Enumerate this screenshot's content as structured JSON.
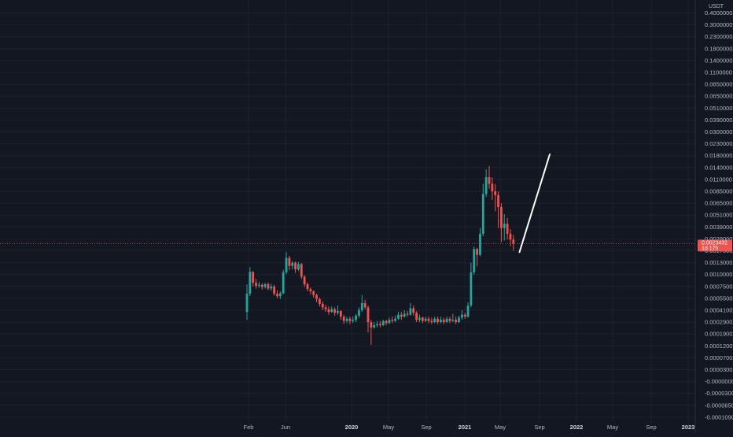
{
  "chart_data": {
    "type": "candlestick",
    "unit_label": "USDT",
    "y_ticks": [
      "0.4000000",
      "0.3000000",
      "0.2300000",
      "0.1800000",
      "0.1400000",
      "0.1100000",
      "0.0850000",
      "0.0650000",
      "0.0510000",
      "0.0390000",
      "0.0300000",
      "0.0230000",
      "0.0180000",
      "0.0140000",
      "0.0110000",
      "0.0085000",
      "0.0065000",
      "0.0051000",
      "0.0039000",
      "0.0029000",
      "0.0017000",
      "0.0013000",
      "0.0010000",
      "0.0007500",
      "0.0005500",
      "0.0004100",
      "0.0002900",
      "0.0001900",
      "0.0001200",
      "0.0000700",
      "0.0000300",
      "-0.0000000",
      "-0.0000300",
      "-0.0000650",
      "-0.0001090"
    ],
    "x_ticks": [
      {
        "label": "Feb",
        "bold": false
      },
      {
        "label": "Jun",
        "bold": false
      },
      {
        "label": "2020",
        "bold": true
      },
      {
        "label": "May",
        "bold": false
      },
      {
        "label": "Sep",
        "bold": false
      },
      {
        "label": "2021",
        "bold": true
      },
      {
        "label": "May",
        "bold": false
      },
      {
        "label": "Sep",
        "bold": false
      },
      {
        "label": "2022",
        "bold": true
      },
      {
        "label": "May",
        "bold": false
      },
      {
        "label": "Sep",
        "bold": false
      },
      {
        "label": "2023",
        "bold": true
      }
    ],
    "current_price": {
      "value": "0.0023432",
      "countdown": "1d 17h"
    },
    "colors": {
      "background": "#131722",
      "up": "#26a69a",
      "down": "#ef5350",
      "grid": "#1e222d",
      "price_line": "#ef5350",
      "drawing": "#ffffff"
    },
    "drawing": {
      "type": "trendline",
      "start": {
        "week": 90,
        "price": 0.00165
      },
      "end": {
        "week": 100,
        "price": 0.0185
      }
    },
    "candles": [
      [
        0.00039,
        0.00062,
        0.00079,
        0.00031
      ],
      [
        0.00062,
        0.00106,
        0.00118,
        0.00058
      ],
      [
        0.00106,
        0.00082,
        0.00108,
        0.00075
      ],
      [
        0.00082,
        0.00076,
        0.0009,
        0.00071
      ],
      [
        0.00076,
        0.00078,
        0.00084,
        0.00072
      ],
      [
        0.00078,
        0.00074,
        0.00081,
        0.00069
      ],
      [
        0.00074,
        0.00079,
        0.00082,
        0.00071
      ],
      [
        0.00079,
        0.00071,
        0.00083,
        0.00068
      ],
      [
        0.00071,
        0.00075,
        0.0008,
        0.00067
      ],
      [
        0.00075,
        0.00062,
        0.00078,
        0.00059
      ],
      [
        0.00062,
        0.00058,
        0.00068,
        0.00055
      ],
      [
        0.00058,
        0.00063,
        0.00066,
        0.00054
      ],
      [
        0.00063,
        0.00105,
        0.00111,
        0.00061
      ],
      [
        0.00105,
        0.00145,
        0.00165,
        0.00101
      ],
      [
        0.00145,
        0.00121,
        0.00152,
        0.0011
      ],
      [
        0.00121,
        0.0013,
        0.00135,
        0.00112
      ],
      [
        0.0013,
        0.00112,
        0.00134,
        0.00104
      ],
      [
        0.00112,
        0.00126,
        0.00132,
        0.00108
      ],
      [
        0.00126,
        0.00095,
        0.00129,
        0.0009
      ],
      [
        0.00095,
        0.00079,
        0.00099,
        0.00074
      ],
      [
        0.00079,
        0.0007,
        0.00083,
        0.00066
      ],
      [
        0.0007,
        0.00066,
        0.00073,
        0.00061
      ],
      [
        0.00066,
        0.0006,
        0.00068,
        0.00056
      ],
      [
        0.0006,
        0.00054,
        0.00062,
        0.0005
      ],
      [
        0.00054,
        0.00048,
        0.00056,
        0.00045
      ],
      [
        0.00048,
        0.00044,
        0.00051,
        0.00041
      ],
      [
        0.00044,
        0.00042,
        0.00047,
        0.00039
      ],
      [
        0.00042,
        0.00039,
        0.00045,
        0.00036
      ],
      [
        0.00039,
        0.00042,
        0.00045,
        0.00038
      ],
      [
        0.00042,
        0.00038,
        0.00044,
        0.00035
      ],
      [
        0.00038,
        0.0004,
        0.00046,
        0.00036
      ],
      [
        0.0004,
        0.00034,
        0.00041,
        0.00031
      ],
      [
        0.00034,
        0.0003,
        0.00036,
        0.00027
      ],
      [
        0.0003,
        0.00032,
        0.00034,
        0.00028
      ],
      [
        0.00032,
        0.0003,
        0.00034,
        0.00027
      ],
      [
        0.0003,
        0.00031,
        0.00034,
        0.00028
      ],
      [
        0.00031,
        0.00035,
        0.00037,
        0.00029
      ],
      [
        0.00035,
        0.00041,
        0.00044,
        0.00033
      ],
      [
        0.00041,
        0.00049,
        0.0006,
        0.00039
      ],
      [
        0.00049,
        0.00044,
        0.00053,
        0.00042
      ],
      [
        0.00044,
        0.00029,
        0.00046,
        0.0002
      ],
      [
        0.00029,
        0.00024,
        0.00031,
        0.000125
      ],
      [
        0.00024,
        0.00026,
        0.00029,
        0.00023
      ],
      [
        0.00026,
        0.00027,
        0.0003,
        0.00024
      ],
      [
        0.00027,
        0.00026,
        0.0003,
        0.00024
      ],
      [
        0.00026,
        0.0003,
        0.00031,
        0.00025
      ],
      [
        0.0003,
        0.00028,
        0.00031,
        0.00026
      ],
      [
        0.00028,
        0.00031,
        0.00033,
        0.00027
      ],
      [
        0.00031,
        0.0003,
        0.00034,
        0.00028
      ],
      [
        0.0003,
        0.00032,
        0.00035,
        0.00029
      ],
      [
        0.00032,
        0.00036,
        0.00039,
        0.00031
      ],
      [
        0.00036,
        0.00034,
        0.00039,
        0.00031
      ],
      [
        0.00034,
        0.00037,
        0.00041,
        0.00033
      ],
      [
        0.00037,
        0.00036,
        0.0004,
        0.00034
      ],
      [
        0.00036,
        0.00043,
        0.00049,
        0.00035
      ],
      [
        0.00043,
        0.00038,
        0.00046,
        0.00035
      ],
      [
        0.00038,
        0.00031,
        0.0004,
        0.00029
      ],
      [
        0.00031,
        0.00033,
        0.00036,
        0.00029
      ],
      [
        0.00033,
        0.0003,
        0.00034,
        0.00028
      ],
      [
        0.0003,
        0.00032,
        0.00034,
        0.00029
      ],
      [
        0.00032,
        0.0003,
        0.00034,
        0.00028
      ],
      [
        0.0003,
        0.00029,
        0.00033,
        0.00027
      ],
      [
        0.00029,
        0.00032,
        0.00034,
        0.00028
      ],
      [
        0.00032,
        0.00029,
        0.00034,
        0.00027
      ],
      [
        0.00029,
        0.00031,
        0.00034,
        0.00028
      ],
      [
        0.00031,
        0.00029,
        0.00033,
        0.00027
      ],
      [
        0.00029,
        0.00032,
        0.00034,
        0.00028
      ],
      [
        0.00032,
        0.0003,
        0.00034,
        0.00028
      ],
      [
        0.0003,
        0.00031,
        0.00037,
        0.00029
      ],
      [
        0.00031,
        0.00029,
        0.00034,
        0.00027
      ],
      [
        0.00029,
        0.00033,
        0.00035,
        0.00028
      ],
      [
        0.00033,
        0.00036,
        0.00041,
        0.00031
      ],
      [
        0.00036,
        0.00034,
        0.00038,
        0.00032
      ],
      [
        0.00034,
        0.00046,
        0.0005,
        0.00033
      ],
      [
        0.00046,
        0.00105,
        0.0013,
        0.00044
      ],
      [
        0.00105,
        0.00185,
        0.00205,
        0.001
      ],
      [
        0.00185,
        0.00155,
        0.00195,
        0.0012
      ],
      [
        0.00155,
        0.0033,
        0.0038,
        0.0015
      ],
      [
        0.0033,
        0.008,
        0.01,
        0.0031
      ],
      [
        0.008,
        0.0115,
        0.0135,
        0.0075
      ],
      [
        0.0115,
        0.01,
        0.0145,
        0.009
      ],
      [
        0.01,
        0.0085,
        0.0115,
        0.007
      ],
      [
        0.0085,
        0.0078,
        0.01,
        0.0055
      ],
      [
        0.0078,
        0.006,
        0.0085,
        0.0038
      ],
      [
        0.006,
        0.0038,
        0.0065,
        0.0025
      ],
      [
        0.0038,
        0.0042,
        0.0052,
        0.0027
      ],
      [
        0.0042,
        0.0033,
        0.0048,
        0.0028
      ],
      [
        0.0033,
        0.0028,
        0.0037,
        0.0021
      ],
      [
        0.0028,
        0.00234,
        0.0032,
        0.0017
      ]
    ]
  }
}
